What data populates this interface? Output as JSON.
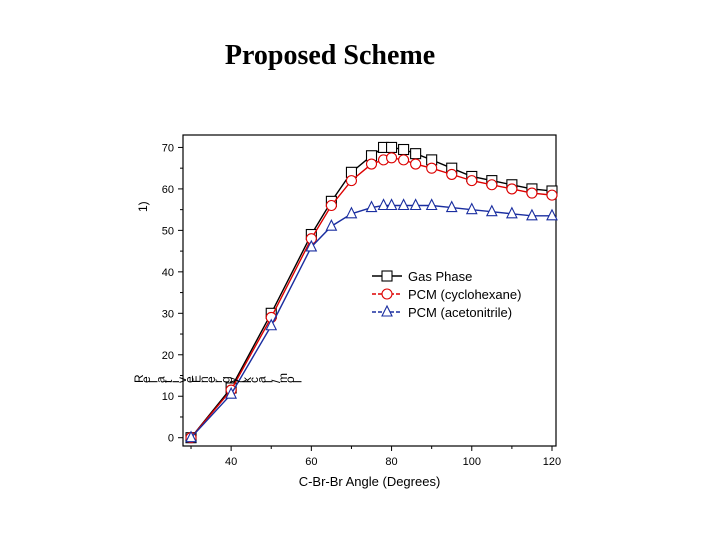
{
  "slide": {
    "title": "Proposed Scheme"
  },
  "chart_data": {
    "type": "line",
    "title": "",
    "xlabel": "C-Br-Br Angle (Degrees)",
    "ylabel_fragments": [
      "1)",
      "R",
      "e",
      "l",
      "a",
      "t",
      "i",
      "v",
      "e",
      "E",
      "n",
      "e",
      "r",
      "g",
      "y",
      "(",
      "k",
      "c",
      "a",
      "l",
      "/",
      "m",
      "o",
      "l"
    ],
    "xlim": [
      28,
      121
    ],
    "ylim": [
      -2,
      73
    ],
    "x_ticks": [
      40,
      60,
      80,
      100,
      120
    ],
    "y_ticks": [
      0,
      10,
      20,
      30,
      40,
      50,
      60,
      70
    ],
    "x": [
      30,
      40,
      50,
      60,
      65,
      70,
      75,
      78,
      80,
      83,
      86,
      90,
      95,
      100,
      105,
      110,
      115,
      120
    ],
    "series": [
      {
        "name": "Gas Phase",
        "color": "#000000",
        "marker": "square",
        "values": [
          0,
          12,
          30,
          49,
          57,
          64,
          68,
          70,
          70,
          69.5,
          68.5,
          67,
          65,
          63,
          62,
          61,
          60,
          59.5
        ]
      },
      {
        "name": "PCM (cyclohexane)",
        "color": "#dd0000",
        "marker": "circle",
        "values": [
          0,
          11.5,
          29,
          48,
          56,
          62,
          66,
          67,
          67.5,
          67,
          66,
          65,
          63.5,
          62,
          61,
          60,
          59,
          58.5
        ]
      },
      {
        "name": "PCM (acetonitrile)",
        "color": "#1a2ea0",
        "marker": "triangle",
        "values": [
          0,
          10.5,
          27,
          46,
          51,
          54,
          55.5,
          56,
          56,
          56,
          56,
          56,
          55.5,
          55,
          54.5,
          54,
          53.5,
          53.5
        ]
      }
    ],
    "legend_position": "center-right",
    "grid": false
  }
}
